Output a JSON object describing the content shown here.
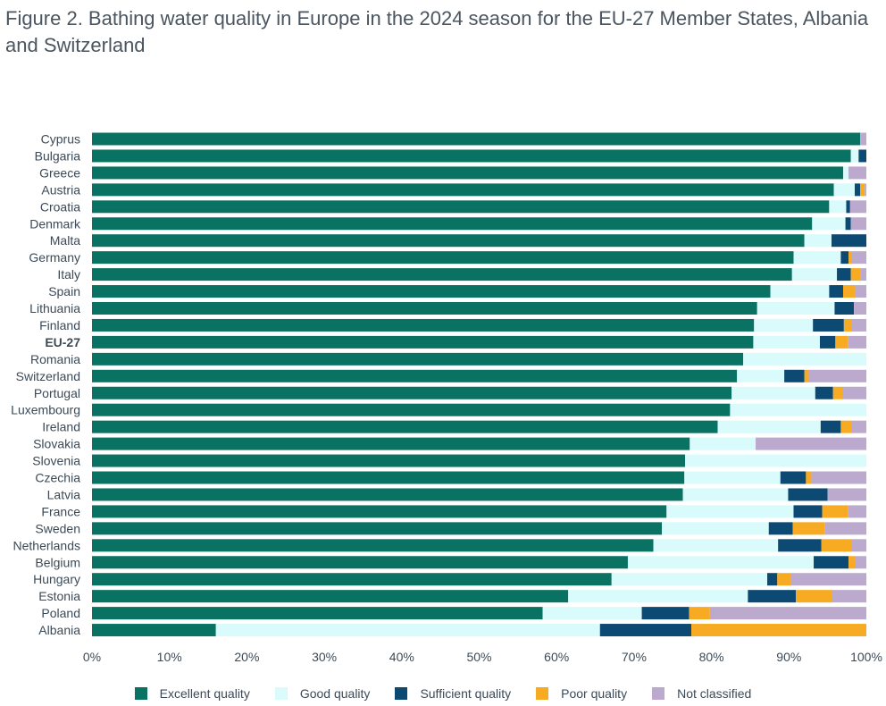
{
  "title": "Figure 2. Bathing water quality in Europe in the 2024 season for the EU-27 Member States, Albania and Switzerland",
  "chart_data": {
    "type": "bar",
    "orientation": "horizontal",
    "stacked": true,
    "title": "Figure 2. Bathing water quality in Europe in the 2024 season for the EU-27 Member States, Albania and Switzerland",
    "xlabel": "",
    "ylabel": "",
    "xlim": [
      0,
      100
    ],
    "x_ticks": [
      "0%",
      "10%",
      "20%",
      "30%",
      "40%",
      "50%",
      "60%",
      "70%",
      "80%",
      "90%",
      "100%"
    ],
    "legend_position": "bottom",
    "grid": false,
    "categories": [
      "Cyprus",
      "Bulgaria",
      "Greece",
      "Austria",
      "Croatia",
      "Denmark",
      "Malta",
      "Germany",
      "Italy",
      "Spain",
      "Lithuania",
      "Finland",
      "EU-27",
      "Romania",
      "Switzerland",
      "Portugal",
      "Luxembourg",
      "Ireland",
      "Slovakia",
      "Slovenia",
      "Czechia",
      "Latvia",
      "France",
      "Sweden",
      "Netherlands",
      "Belgium",
      "Hungary",
      "Estonia",
      "Poland",
      "Albania"
    ],
    "highlighted_category": "EU-27",
    "series": [
      {
        "name": "Excellent quality",
        "color": "#0a7263",
        "values": [
          99.2,
          98.0,
          97.0,
          95.8,
          95.2,
          93.0,
          92.0,
          90.6,
          90.4,
          87.6,
          85.9,
          85.5,
          85.4,
          84.1,
          83.3,
          82.6,
          82.4,
          80.8,
          77.2,
          76.6,
          76.5,
          76.3,
          74.2,
          73.6,
          72.5,
          69.2,
          67.1,
          61.5,
          58.2,
          16.0
        ]
      },
      {
        "name": "Good quality",
        "color": "#d9fbfb",
        "values": [
          0.0,
          1.0,
          0.7,
          2.7,
          2.2,
          4.3,
          3.5,
          6.1,
          5.8,
          7.6,
          10.0,
          7.6,
          8.6,
          15.9,
          6.1,
          10.8,
          17.6,
          13.3,
          8.5,
          23.4,
          12.4,
          13.6,
          16.4,
          13.8,
          16.1,
          24.0,
          20.1,
          23.2,
          12.8,
          49.6
        ]
      },
      {
        "name": "Sufficient quality",
        "color": "#0d4a73",
        "values": [
          0.0,
          1.0,
          0.0,
          0.7,
          0.5,
          0.7,
          4.5,
          1.0,
          1.8,
          1.8,
          2.5,
          4.0,
          2.0,
          0.0,
          2.6,
          2.3,
          0.0,
          2.6,
          0.0,
          0.0,
          3.3,
          5.1,
          3.7,
          3.1,
          5.6,
          4.5,
          1.3,
          6.2,
          6.1,
          11.8
        ]
      },
      {
        "name": "Poor quality",
        "color": "#f7ab22",
        "values": [
          0.0,
          0.0,
          0.0,
          0.6,
          0.0,
          0.0,
          0.0,
          0.4,
          1.3,
          1.5,
          0.0,
          1.0,
          1.6,
          0.0,
          0.5,
          1.3,
          0.0,
          1.4,
          0.0,
          0.0,
          0.7,
          0.0,
          3.3,
          4.1,
          3.9,
          0.8,
          1.7,
          4.6,
          2.7,
          22.6
        ]
      },
      {
        "name": "Not classified",
        "color": "#bcaace",
        "values": [
          0.8,
          0.0,
          2.3,
          0.2,
          2.1,
          2.0,
          0.0,
          1.9,
          0.7,
          1.5,
          1.6,
          1.9,
          2.4,
          0.0,
          7.5,
          3.0,
          0.0,
          1.9,
          14.3,
          0.0,
          7.1,
          5.0,
          2.4,
          5.4,
          1.9,
          1.5,
          9.8,
          4.5,
          20.2,
          0.0
        ]
      }
    ]
  }
}
